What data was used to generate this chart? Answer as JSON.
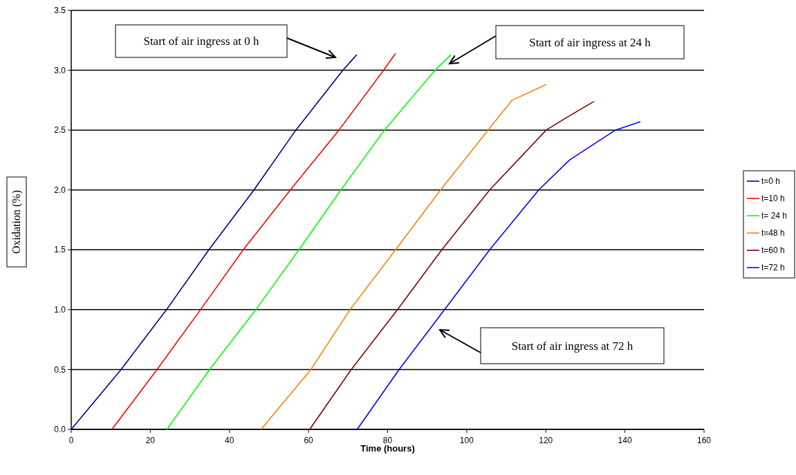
{
  "chart_data": {
    "type": "line",
    "xlabel": "Time (hours)",
    "ylabel": "Oxidation (%)",
    "xlim": [
      0,
      160
    ],
    "xticks": [
      0,
      20,
      40,
      60,
      80,
      100,
      120,
      140,
      160
    ],
    "ylim": [
      0,
      3.5
    ],
    "yticks": [
      {
        "value": 0,
        "label": "0.0"
      },
      {
        "value": 0.5,
        "label": "0.5"
      },
      {
        "value": 1,
        "label": "1.0"
      },
      {
        "value": 1.5,
        "label": "1.5"
      },
      {
        "value": 2,
        "label": "2.0"
      },
      {
        "value": 2.5,
        "label": "2.5"
      },
      {
        "value": 3,
        "label": "3.0"
      },
      {
        "value": 3.5,
        "label": "3.5"
      }
    ],
    "grid": "y",
    "legend": "right",
    "marker": "none",
    "line_style": "solid",
    "series": [
      {
        "name": "t=0 h",
        "color": "#000080",
        "x": [
          0,
          12.6,
          24.1,
          34.8,
          46.2,
          56.8,
          68.7,
          72.2
        ],
        "values": [
          0,
          0.5,
          1,
          1.5,
          2,
          2.5,
          3,
          3.13
        ]
      },
      {
        "name": "t=10 h",
        "color": "#ff0000",
        "x": [
          10.3,
          21.7,
          32.7,
          43.5,
          55.4,
          67.7,
          79,
          82
        ],
        "values": [
          0,
          0.5,
          1,
          1.5,
          2,
          2.5,
          3,
          3.14
        ]
      },
      {
        "name": "t= 24 h",
        "color": "#00ff00",
        "x": [
          24.2,
          35,
          46.7,
          57.6,
          68.2,
          79.2,
          92,
          96
        ],
        "values": [
          0,
          0.5,
          1,
          1.5,
          2,
          2.5,
          3,
          3.13
        ]
      },
      {
        "name": "t=48 h",
        "color": "#ff8000",
        "x": [
          48,
          60.6,
          70.5,
          82,
          93.4,
          105.4,
          111.5,
          120.1
        ],
        "values": [
          0,
          0.5,
          1,
          1.5,
          2,
          2.5,
          2.75,
          2.88
        ]
      },
      {
        "name": "t=60 h",
        "color": "#800000",
        "x": [
          60.3,
          70.8,
          82.5,
          93.7,
          105.8,
          120.1,
          125,
          132.2
        ],
        "values": [
          0,
          0.5,
          1,
          1.5,
          2,
          2.5,
          2.6,
          2.74
        ]
      },
      {
        "name": "t=72 h",
        "color": "#0000ff",
        "x": [
          72.3,
          82.9,
          94.4,
          105.8,
          118.2,
          126,
          137.6,
          143.9
        ],
        "values": [
          0,
          0.5,
          1,
          1.5,
          2,
          2.25,
          2.5,
          2.57
        ]
      }
    ],
    "annotations": [
      "Start of air ingress at 0 h",
      "Start of air ingress at 24 h",
      "Start of air ingress at 72 h"
    ]
  }
}
